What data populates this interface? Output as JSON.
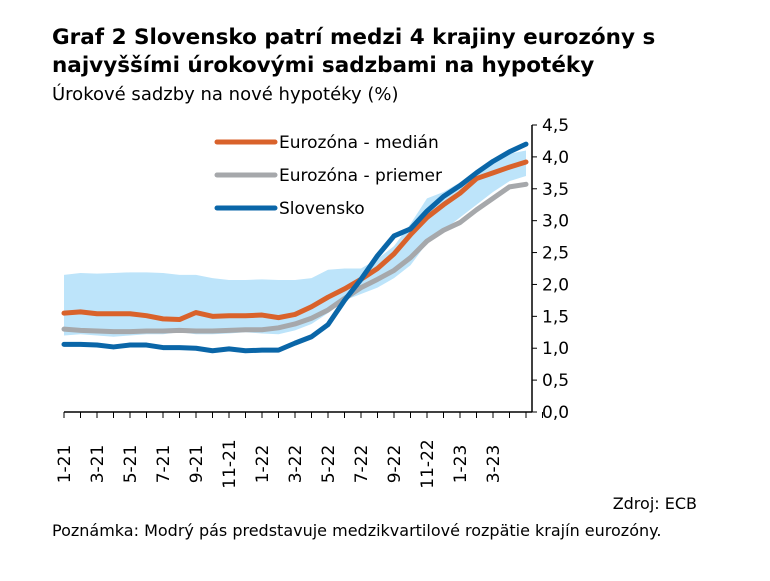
{
  "title": "Graf 2 Slovensko patrí medzi 4 krajiny eurozóny s najvyššími úrokovými sadzbami na hypotéky",
  "subtitle": "Úrokové sadzby na nové hypotéky (%)",
  "source": "Zdroj: ECB",
  "note": "Poznámka: Modrý pás predstavuje medzikvartilové rozpätie krajín eurozóny.",
  "chart_data": {
    "type": "line",
    "title": "Úrokové sadzby na nové hypotéky (%)",
    "ylim": [
      0,
      4.5
    ],
    "yticks": [
      "0,0",
      "0,5",
      "1,0",
      "1,5",
      "2,0",
      "2,5",
      "3,0",
      "3,5",
      "4,0",
      "4,5"
    ],
    "xtick_labels": [
      "1-21",
      "3-21",
      "5-21",
      "7-21",
      "9-21",
      "11-21",
      "1-22",
      "3-22",
      "5-22",
      "7-22",
      "9-22",
      "11-22",
      "1-23",
      "3-23"
    ],
    "legend": "top-left",
    "series": [
      {
        "name": "Eurozóna - medián",
        "color": "#d9622b",
        "values": [
          1.55,
          1.57,
          1.54,
          1.54,
          1.54,
          1.51,
          1.46,
          1.45,
          1.56,
          1.5,
          1.51,
          1.51,
          1.52,
          1.48,
          1.53,
          1.65,
          1.8,
          1.93,
          2.08,
          2.25,
          2.48,
          2.78,
          3.05,
          3.25,
          3.43,
          3.66,
          3.75,
          3.84,
          3.92
        ]
      },
      {
        "name": "Eurozóna - priemer",
        "color": "#a6a8ab",
        "values": [
          1.3,
          1.28,
          1.27,
          1.26,
          1.26,
          1.27,
          1.27,
          1.28,
          1.27,
          1.27,
          1.28,
          1.29,
          1.29,
          1.32,
          1.38,
          1.47,
          1.6,
          1.78,
          1.95,
          2.08,
          2.22,
          2.42,
          2.68,
          2.85,
          2.97,
          3.17,
          3.35,
          3.53,
          3.57
        ]
      },
      {
        "name": "Slovensko",
        "color": "#0a66a8",
        "values": [
          1.06,
          1.06,
          1.05,
          1.02,
          1.05,
          1.05,
          1.01,
          1.01,
          1.0,
          0.96,
          0.99,
          0.96,
          0.97,
          0.97,
          1.08,
          1.18,
          1.37,
          1.75,
          2.08,
          2.45,
          2.76,
          2.87,
          3.15,
          3.38,
          3.55,
          3.75,
          3.93,
          4.08,
          4.2
        ]
      }
    ],
    "band": {
      "name": "Medzikvartilové rozpätie",
      "color": "#bde4fa",
      "upper": [
        2.15,
        2.18,
        2.17,
        2.18,
        2.19,
        2.19,
        2.18,
        2.15,
        2.15,
        2.1,
        2.07,
        2.07,
        2.08,
        2.07,
        2.07,
        2.1,
        2.23,
        2.25,
        2.25,
        2.4,
        2.6,
        2.95,
        3.35,
        3.45,
        3.6,
        3.75,
        3.9,
        4.05,
        4.1
      ],
      "lower": [
        1.2,
        1.22,
        1.2,
        1.18,
        1.2,
        1.22,
        1.22,
        1.25,
        1.22,
        1.22,
        1.23,
        1.25,
        1.23,
        1.22,
        1.28,
        1.38,
        1.55,
        1.75,
        1.85,
        1.95,
        2.1,
        2.3,
        2.65,
        2.85,
        3.05,
        3.25,
        3.45,
        3.62,
        3.7
      ]
    }
  }
}
